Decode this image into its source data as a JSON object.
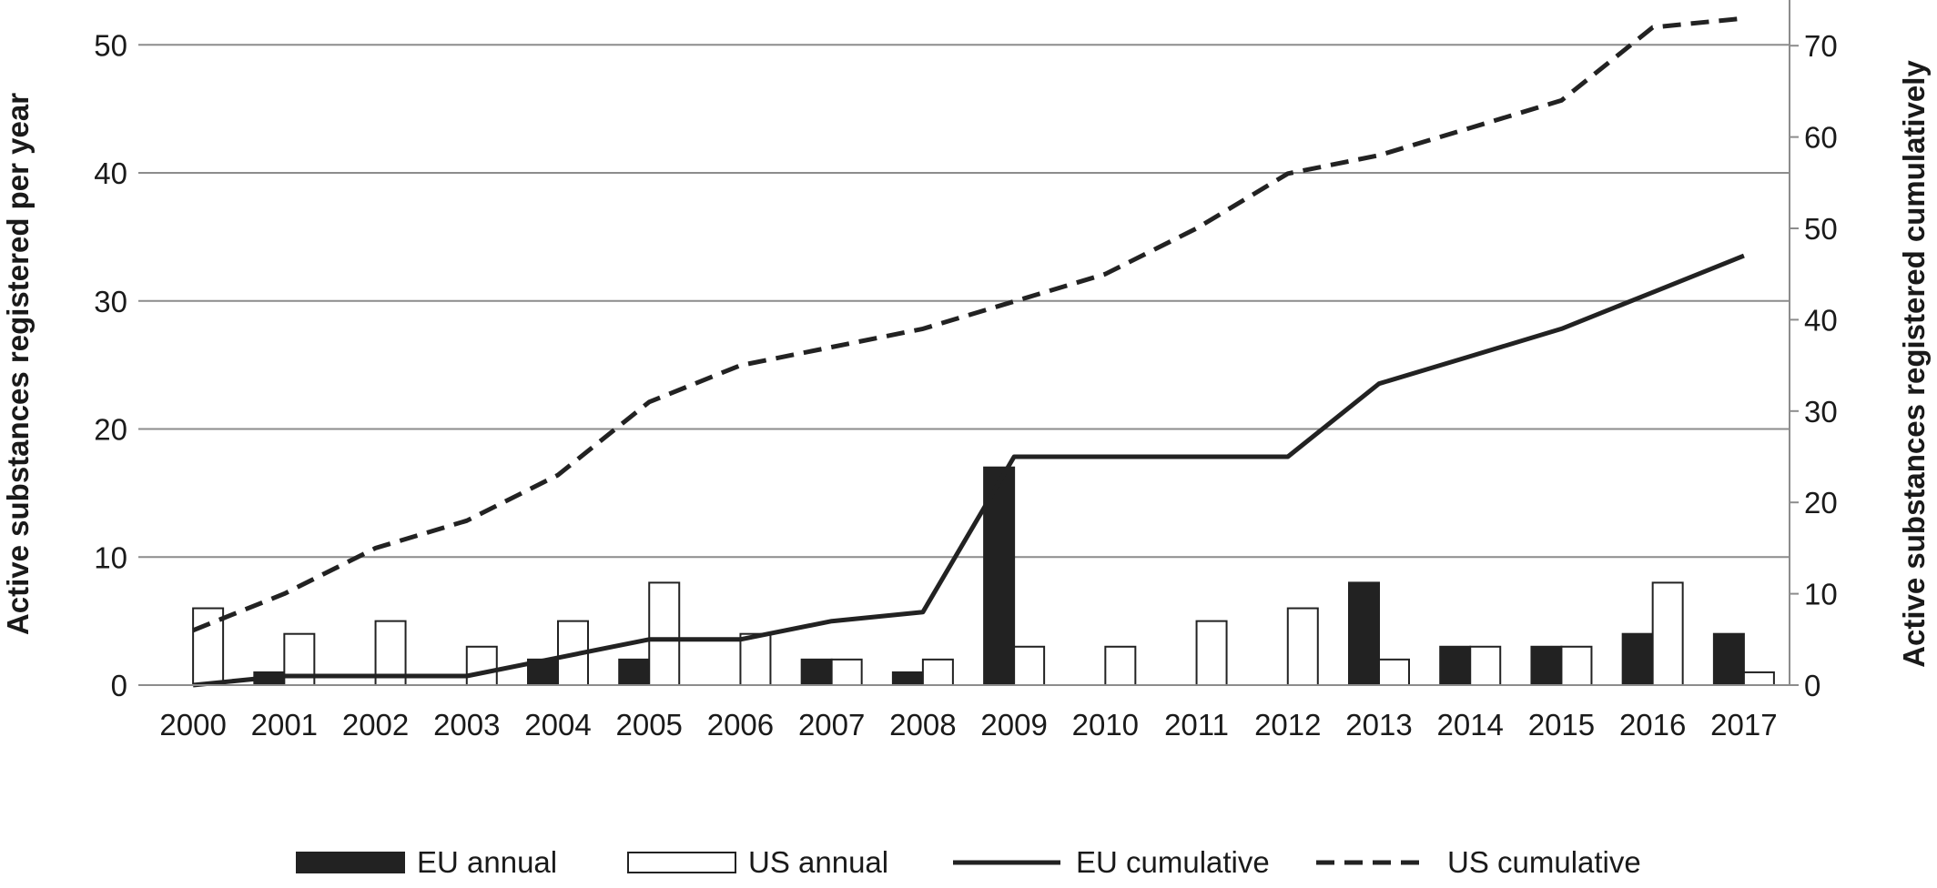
{
  "chart_data": {
    "type": "bar",
    "categories": [
      "2000",
      "2001",
      "2002",
      "2003",
      "2004",
      "2005",
      "2006",
      "2007",
      "2008",
      "2009",
      "2010",
      "2011",
      "2012",
      "2013",
      "2014",
      "2015",
      "2016",
      "2017"
    ],
    "series": [
      {
        "name": "EU annual",
        "kind": "bar",
        "axis": "left",
        "color": "#222222",
        "values": [
          0,
          1,
          0,
          0,
          2,
          2,
          0,
          2,
          1,
          17,
          0,
          0,
          0,
          8,
          3,
          3,
          4,
          4
        ]
      },
      {
        "name": "US annual",
        "kind": "bar",
        "axis": "left",
        "color": "#ffffff",
        "values": [
          6,
          4,
          5,
          3,
          5,
          8,
          4,
          2,
          2,
          3,
          3,
          5,
          6,
          2,
          3,
          3,
          8,
          1
        ]
      },
      {
        "name": "EU cumulative",
        "kind": "line",
        "axis": "right",
        "color": "#222222",
        "dash": "solid",
        "values": [
          0,
          1,
          1,
          1,
          3,
          5,
          5,
          7,
          8,
          25,
          25,
          25,
          25,
          33,
          36,
          39,
          43,
          47
        ]
      },
      {
        "name": "US cumulative",
        "kind": "line",
        "axis": "right",
        "color": "#222222",
        "dash": "dashed",
        "values": [
          6,
          10,
          15,
          18,
          23,
          31,
          35,
          37,
          39,
          42,
          45,
          50,
          56,
          58,
          61,
          64,
          72,
          73
        ]
      }
    ],
    "ylabel": "Active substances registered per year",
    "y2label": "Active substances registered cumulatively",
    "ylim": [
      0,
      53.5
    ],
    "y2lim": [
      0,
      75
    ],
    "yticks": [
      0,
      10,
      20,
      30,
      40,
      50
    ],
    "y2ticks": [
      0,
      10,
      20,
      30,
      40,
      50,
      60,
      70
    ],
    "grid": true,
    "legend_position": "bottom"
  }
}
